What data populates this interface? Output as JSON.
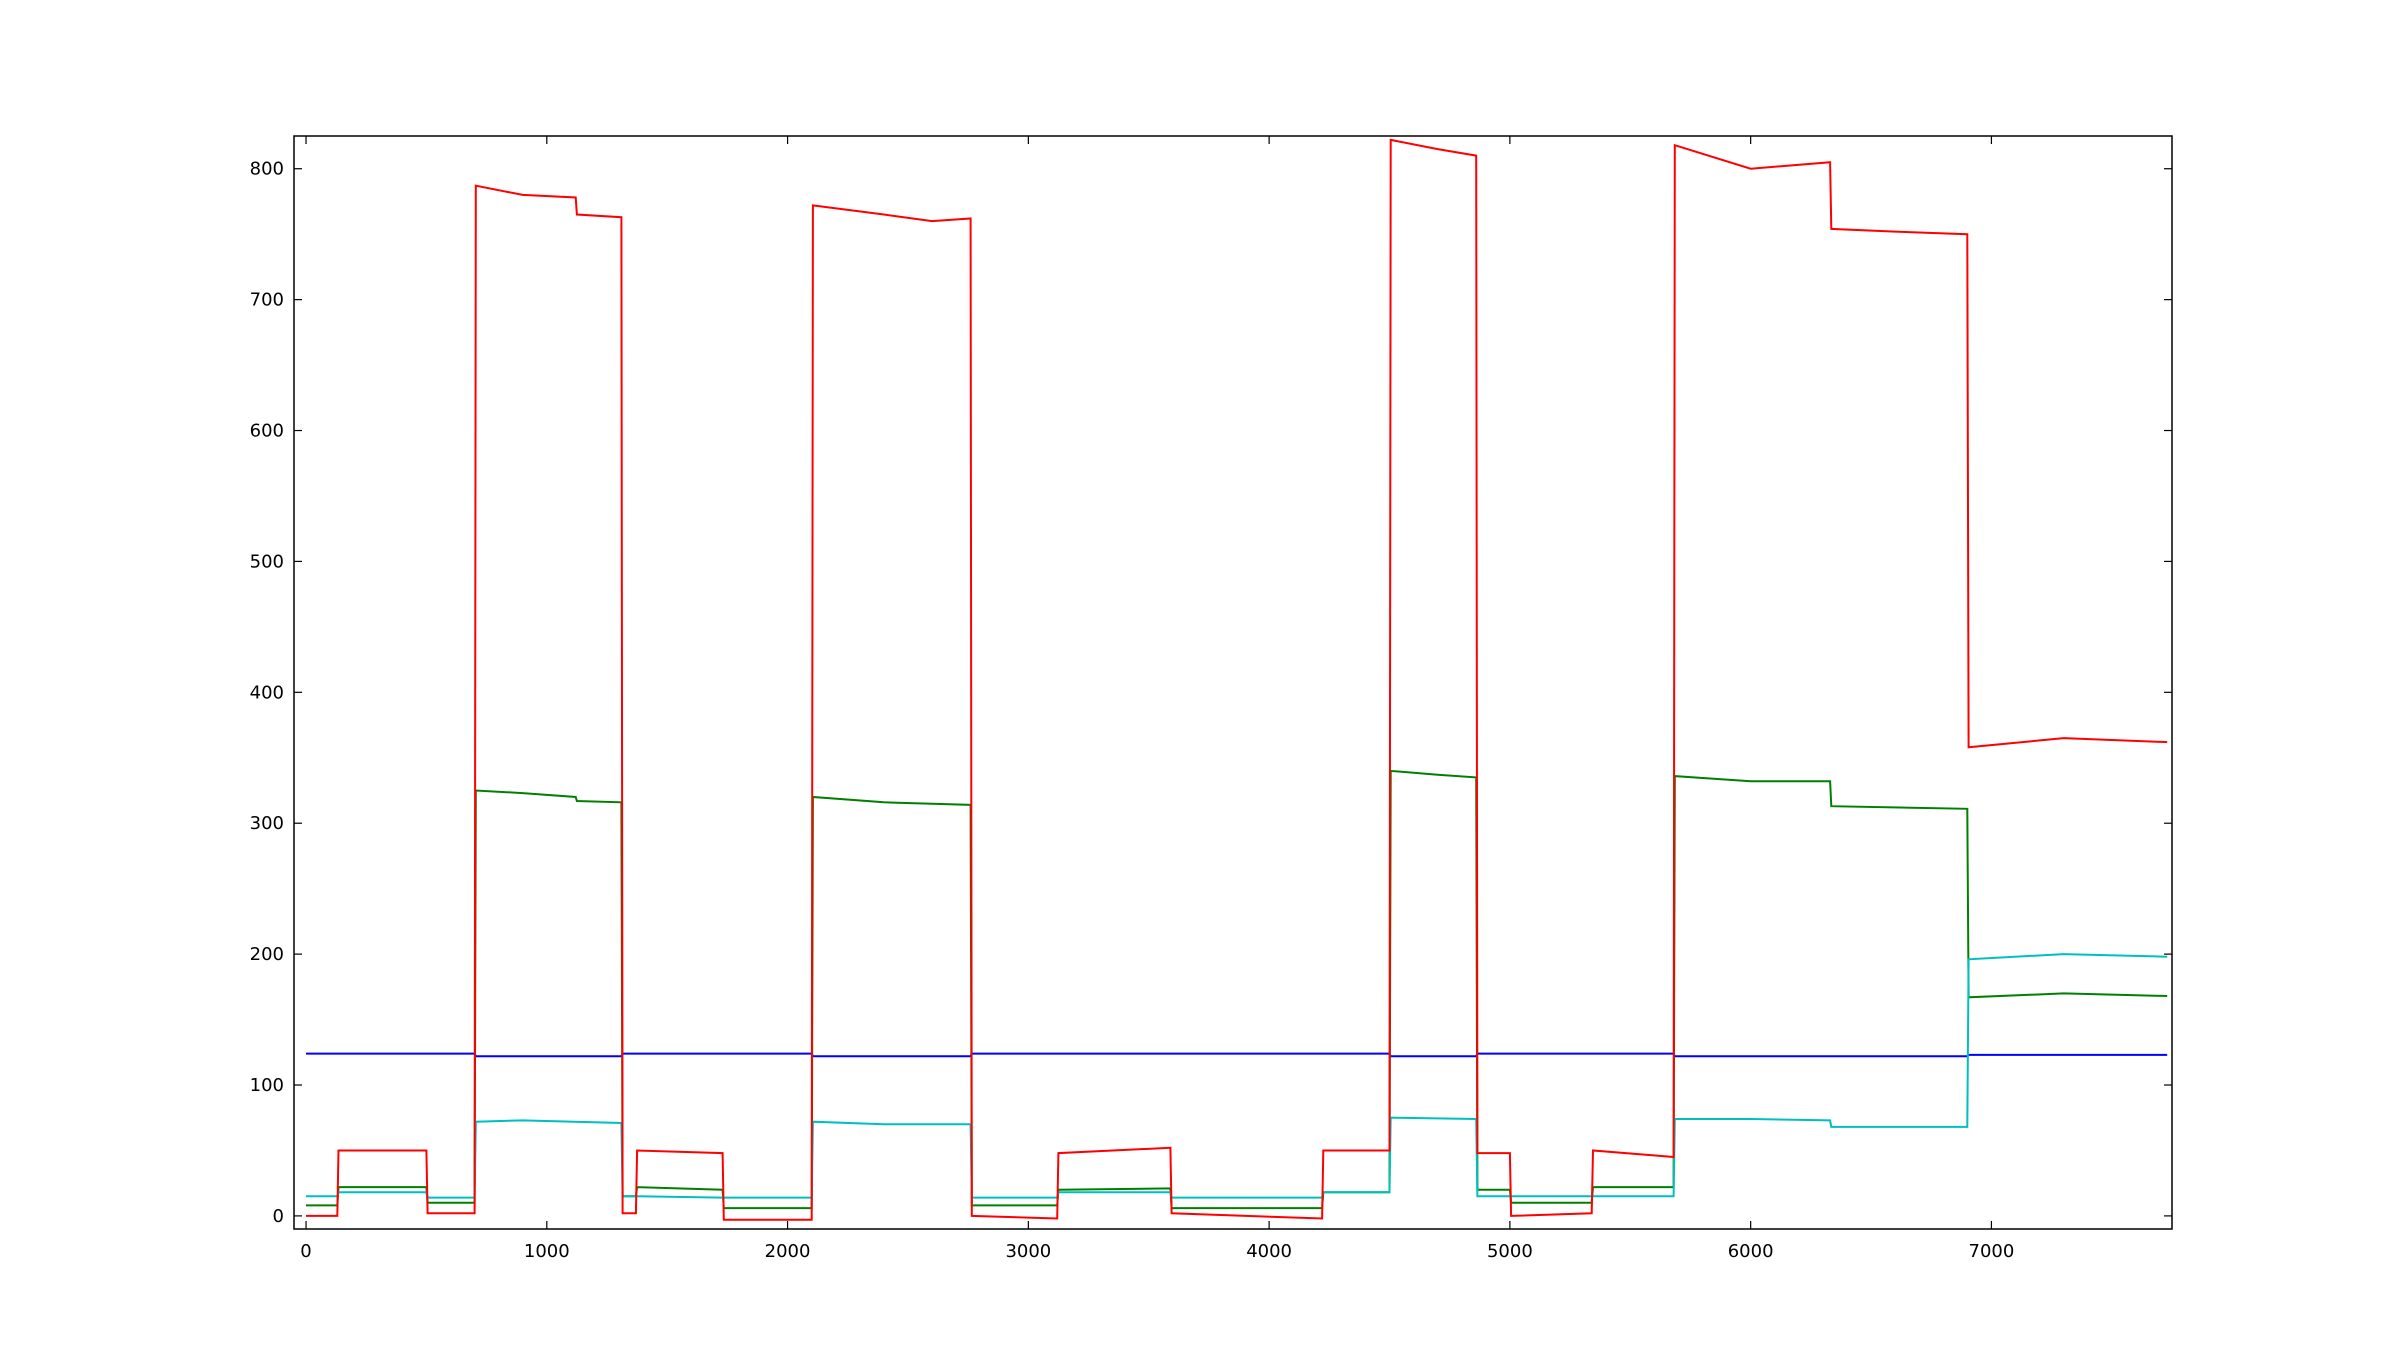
{
  "chart_data": {
    "type": "line",
    "title": "",
    "xlabel": "",
    "ylabel": "",
    "xlim": [
      -50,
      7750
    ],
    "ylim": [
      -10,
      825
    ],
    "grid": false,
    "legend": "none",
    "x_ticks": [
      0,
      1000,
      2000,
      3000,
      4000,
      5000,
      6000,
      7000
    ],
    "x_tick_labels": [
      "0",
      "1000",
      "2000",
      "3000",
      "4000",
      "5000",
      "6000",
      "7000"
    ],
    "y_ticks": [
      0,
      100,
      200,
      300,
      400,
      500,
      600,
      700,
      800
    ],
    "y_tick_labels": [
      "0",
      "100",
      "200",
      "300",
      "400",
      "500",
      "600",
      "700",
      "800"
    ],
    "series": [
      {
        "color": "#0000ff",
        "points": [
          [
            0,
            124
          ],
          [
            700,
            124
          ],
          [
            705,
            122
          ],
          [
            1310,
            122
          ],
          [
            1315,
            124
          ],
          [
            2100,
            124
          ],
          [
            2105,
            122
          ],
          [
            2760,
            122
          ],
          [
            2765,
            124
          ],
          [
            4500,
            124
          ],
          [
            4505,
            122
          ],
          [
            4860,
            122
          ],
          [
            4865,
            124
          ],
          [
            5680,
            124
          ],
          [
            5685,
            122
          ],
          [
            6900,
            122
          ],
          [
            6905,
            123
          ],
          [
            7730,
            123
          ]
        ]
      },
      {
        "color": "#008000",
        "points": [
          [
            0,
            8
          ],
          [
            130,
            8
          ],
          [
            135,
            22
          ],
          [
            500,
            22
          ],
          [
            505,
            10
          ],
          [
            700,
            10
          ],
          [
            705,
            325
          ],
          [
            900,
            323
          ],
          [
            1120,
            320
          ],
          [
            1125,
            317
          ],
          [
            1310,
            316
          ],
          [
            1315,
            15
          ],
          [
            1370,
            15
          ],
          [
            1375,
            22
          ],
          [
            1730,
            20
          ],
          [
            1735,
            6
          ],
          [
            2100,
            6
          ],
          [
            2105,
            320
          ],
          [
            2400,
            316
          ],
          [
            2760,
            314
          ],
          [
            2765,
            8
          ],
          [
            3120,
            8
          ],
          [
            3125,
            20
          ],
          [
            3590,
            21
          ],
          [
            3595,
            6
          ],
          [
            4220,
            6
          ],
          [
            4225,
            18
          ],
          [
            4500,
            18
          ],
          [
            4505,
            340
          ],
          [
            4700,
            337
          ],
          [
            4860,
            335
          ],
          [
            4865,
            20
          ],
          [
            5000,
            20
          ],
          [
            5005,
            10
          ],
          [
            5340,
            10
          ],
          [
            5345,
            22
          ],
          [
            5680,
            22
          ],
          [
            5685,
            336
          ],
          [
            6000,
            332
          ],
          [
            6330,
            332
          ],
          [
            6335,
            313
          ],
          [
            6900,
            311
          ],
          [
            6905,
            167
          ],
          [
            7300,
            170
          ],
          [
            7730,
            168
          ]
        ]
      },
      {
        "color": "#00bfbf",
        "points": [
          [
            0,
            15
          ],
          [
            130,
            15
          ],
          [
            135,
            18
          ],
          [
            500,
            18
          ],
          [
            505,
            14
          ],
          [
            700,
            14
          ],
          [
            705,
            72
          ],
          [
            900,
            73
          ],
          [
            1310,
            71
          ],
          [
            1315,
            15
          ],
          [
            1370,
            15
          ],
          [
            1375,
            15
          ],
          [
            1730,
            14
          ],
          [
            1735,
            14
          ],
          [
            2100,
            14
          ],
          [
            2105,
            72
          ],
          [
            2400,
            70
          ],
          [
            2760,
            70
          ],
          [
            2765,
            14
          ],
          [
            3120,
            14
          ],
          [
            3125,
            18
          ],
          [
            3590,
            18
          ],
          [
            3595,
            14
          ],
          [
            4220,
            14
          ],
          [
            4225,
            18
          ],
          [
            4500,
            18
          ],
          [
            4505,
            75
          ],
          [
            4860,
            74
          ],
          [
            4865,
            15
          ],
          [
            5000,
            15
          ],
          [
            5005,
            15
          ],
          [
            5340,
            15
          ],
          [
            5345,
            15
          ],
          [
            5680,
            15
          ],
          [
            5685,
            74
          ],
          [
            6000,
            74
          ],
          [
            6330,
            73
          ],
          [
            6335,
            68
          ],
          [
            6900,
            68
          ],
          [
            6905,
            196
          ],
          [
            7300,
            200
          ],
          [
            7730,
            198
          ]
        ]
      },
      {
        "color": "#ff0000",
        "points": [
          [
            0,
            0
          ],
          [
            130,
            0
          ],
          [
            135,
            50
          ],
          [
            500,
            50
          ],
          [
            505,
            2
          ],
          [
            700,
            2
          ],
          [
            705,
            787
          ],
          [
            900,
            780
          ],
          [
            1120,
            778
          ],
          [
            1125,
            765
          ],
          [
            1310,
            763
          ],
          [
            1315,
            2
          ],
          [
            1370,
            2
          ],
          [
            1375,
            50
          ],
          [
            1730,
            48
          ],
          [
            1735,
            -3
          ],
          [
            2100,
            -3
          ],
          [
            2105,
            772
          ],
          [
            2400,
            765
          ],
          [
            2600,
            760
          ],
          [
            2760,
            762
          ],
          [
            2765,
            0
          ],
          [
            3120,
            -2
          ],
          [
            3125,
            48
          ],
          [
            3590,
            52
          ],
          [
            3595,
            2
          ],
          [
            4220,
            -2
          ],
          [
            4225,
            50
          ],
          [
            4500,
            50
          ],
          [
            4505,
            822
          ],
          [
            4700,
            815
          ],
          [
            4860,
            810
          ],
          [
            4865,
            48
          ],
          [
            5000,
            48
          ],
          [
            5005,
            0
          ],
          [
            5340,
            2
          ],
          [
            5345,
            50
          ],
          [
            5680,
            45
          ],
          [
            5685,
            818
          ],
          [
            6000,
            800
          ],
          [
            6330,
            805
          ],
          [
            6335,
            754
          ],
          [
            6600,
            752
          ],
          [
            6900,
            750
          ],
          [
            6905,
            358
          ],
          [
            7300,
            365
          ],
          [
            7730,
            362
          ]
        ]
      }
    ]
  }
}
